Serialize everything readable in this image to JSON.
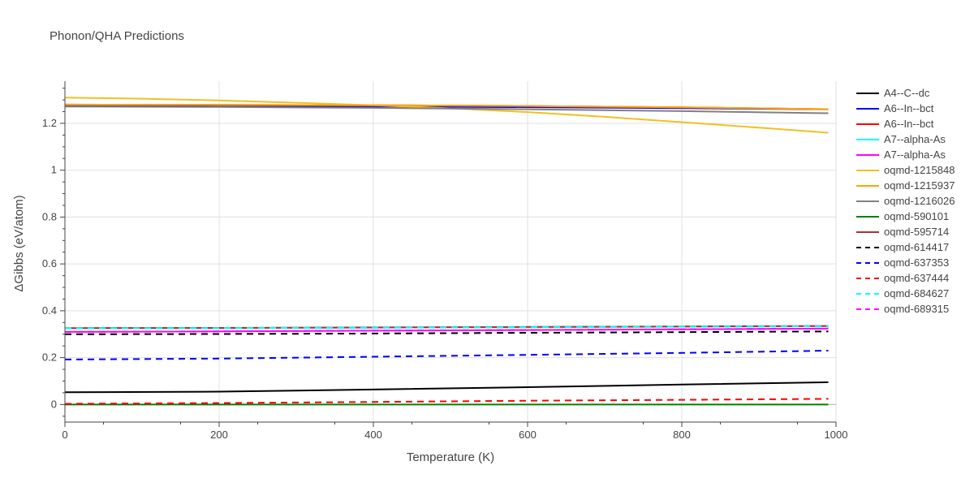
{
  "chart_data": {
    "type": "line",
    "title": "Phonon/QHA Predictions",
    "xlabel": "Temperature (K)",
    "ylabel": "ΔGibbs (eV/atom)",
    "xlim": [
      0,
      1000
    ],
    "ylim": [
      -0.075,
      1.38
    ],
    "xticks": [
      0,
      200,
      400,
      600,
      800,
      1000
    ],
    "yticks": [
      0,
      0.2,
      0.4,
      0.6,
      0.8,
      1,
      1.2
    ],
    "ytick_labels": [
      "0",
      "0.2",
      "0.4",
      "0.6",
      "0.8",
      "1",
      "1.2"
    ],
    "grid": true,
    "legend_position": "right",
    "series": [
      {
        "name": "A4--C--dc",
        "color": "#000000",
        "dash": "solid",
        "x": [
          0,
          200,
          400,
          600,
          800,
          990
        ],
        "y": [
          0.052,
          0.055,
          0.064,
          0.074,
          0.085,
          0.095
        ]
      },
      {
        "name": "A6--In--bct",
        "color": "#0000ff",
        "dash": "solid",
        "x": [
          0,
          200,
          400,
          600,
          800,
          990
        ],
        "y": [
          1.275,
          1.274,
          1.272,
          1.269,
          1.265,
          1.26
        ]
      },
      {
        "name": "A6--In--bct",
        "color": "#ff0000",
        "dash": "solid",
        "x": [
          0,
          200,
          400,
          600,
          800,
          990
        ],
        "y": [
          1.28,
          1.279,
          1.277,
          1.274,
          1.268,
          1.26
        ]
      },
      {
        "name": "A7--alpha-As",
        "color": "#00ffff",
        "dash": "solid",
        "x": [
          0,
          200,
          400,
          600,
          800,
          990
        ],
        "y": [
          0.325,
          0.326,
          0.328,
          0.33,
          0.332,
          0.334
        ]
      },
      {
        "name": "A7--alpha-As",
        "color": "#ff00ff",
        "dash": "solid",
        "x": [
          0,
          200,
          400,
          600,
          800,
          990
        ],
        "y": [
          0.31,
          0.312,
          0.315,
          0.318,
          0.321,
          0.324
        ]
      },
      {
        "name": "oqmd-1215848",
        "color": "#f0c020",
        "dash": "solid",
        "x": [
          0,
          100,
          200,
          300,
          400,
          500,
          600,
          700,
          800,
          900,
          990
        ],
        "y": [
          1.31,
          1.305,
          1.298,
          1.288,
          1.277,
          1.264,
          1.248,
          1.228,
          1.205,
          1.182,
          1.16
        ]
      },
      {
        "name": "oqmd-1215937",
        "color": "#ffa500",
        "dash": "solid",
        "x": [
          0,
          200,
          400,
          600,
          800,
          990
        ],
        "y": [
          1.28,
          1.279,
          1.277,
          1.274,
          1.268,
          1.26
        ]
      },
      {
        "name": "oqmd-1216026",
        "color": "#808080",
        "dash": "solid",
        "x": [
          0,
          200,
          400,
          600,
          800,
          990
        ],
        "y": [
          1.272,
          1.27,
          1.266,
          1.26,
          1.252,
          1.243
        ]
      },
      {
        "name": "oqmd-590101",
        "color": "#008000",
        "dash": "solid",
        "x": [
          0,
          200,
          400,
          600,
          800,
          990
        ],
        "y": [
          0,
          0,
          0,
          0,
          0,
          0
        ]
      },
      {
        "name": "oqmd-595714",
        "color": "#b03030",
        "dash": "solid",
        "x": [
          0,
          200,
          400,
          600,
          800,
          990
        ],
        "y": [
          0.326,
          0.327,
          0.329,
          0.331,
          0.333,
          0.335
        ]
      },
      {
        "name": "oqmd-614417",
        "color": "#000000",
        "dash": "dash",
        "x": [
          0,
          200,
          400,
          600,
          800,
          990
        ],
        "y": [
          0.3,
          0.301,
          0.303,
          0.306,
          0.309,
          0.312
        ]
      },
      {
        "name": "oqmd-637353",
        "color": "#0000ff",
        "dash": "dash",
        "x": [
          0,
          200,
          400,
          600,
          800,
          990
        ],
        "y": [
          0.192,
          0.196,
          0.204,
          0.212,
          0.22,
          0.23
        ]
      },
      {
        "name": "oqmd-637444",
        "color": "#ff0000",
        "dash": "dash",
        "x": [
          0,
          200,
          400,
          600,
          800,
          990
        ],
        "y": [
          0.003,
          0.006,
          0.011,
          0.016,
          0.02,
          0.024
        ]
      },
      {
        "name": "oqmd-684627",
        "color": "#00ffff",
        "dash": "dash",
        "x": [
          0,
          200,
          400,
          600,
          800,
          990
        ],
        "y": [
          0.325,
          0.326,
          0.328,
          0.33,
          0.332,
          0.334
        ]
      },
      {
        "name": "oqmd-689315",
        "color": "#ff00ff",
        "dash": "dash",
        "x": [
          0,
          200,
          400,
          600,
          800,
          990
        ],
        "y": [
          0.31,
          0.312,
          0.315,
          0.318,
          0.321,
          0.324
        ]
      }
    ]
  }
}
